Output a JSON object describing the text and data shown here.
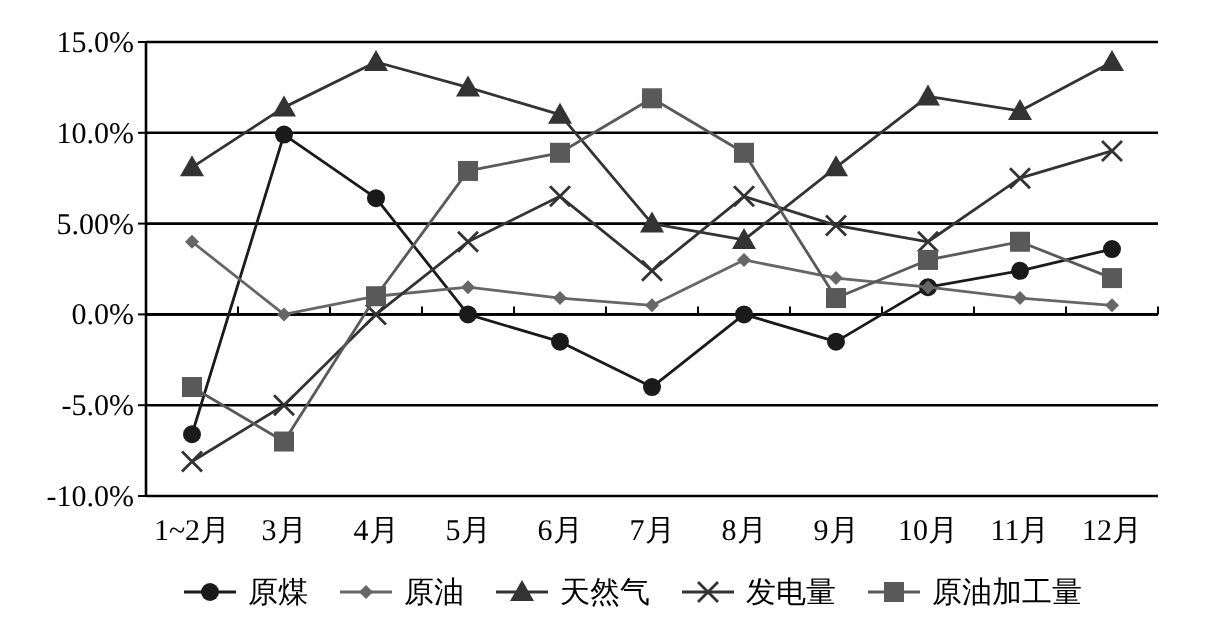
{
  "chart_data": {
    "type": "line",
    "categories": [
      "1~2月",
      "3月",
      "4月",
      "5月",
      "6月",
      "7月",
      "8月",
      "9月",
      "10月",
      "11月",
      "12月"
    ],
    "ylim": [
      -10,
      15
    ],
    "yticks": [
      {
        "value": 15,
        "label": "15.0%"
      },
      {
        "value": 10,
        "label": "10.0%"
      },
      {
        "value": 5,
        "label": "5.00%"
      },
      {
        "value": 0,
        "label": "0.0%"
      },
      {
        "value": -5,
        "label": "-5.0%"
      },
      {
        "value": -10,
        "label": "-10.0%"
      }
    ],
    "grid": "y",
    "legend": "bottom",
    "line_style": "solid",
    "series": [
      {
        "name": "原煤",
        "color": "#1a1a1a",
        "marker": "circle",
        "values": [
          -6.6,
          9.9,
          6.4,
          0,
          -1.5,
          -4.0,
          0,
          -1.5,
          1.5,
          2.4,
          3.6
        ]
      },
      {
        "name": "原油",
        "color": "#666666",
        "marker": "diamond",
        "values": [
          4.0,
          0,
          1.0,
          1.5,
          0.9,
          0.5,
          3.0,
          2.0,
          1.5,
          0.9,
          0.5
        ]
      },
      {
        "name": "天然气",
        "color": "#333333",
        "marker": "triangle",
        "values": [
          8.1,
          11.4,
          13.9,
          12.5,
          11.0,
          5.0,
          4.1,
          8.1,
          12.0,
          11.2,
          13.9
        ]
      },
      {
        "name": "发电量",
        "color": "#333333",
        "marker": "cross",
        "values": [
          -8.1,
          -5.0,
          0,
          4.0,
          6.5,
          2.4,
          6.5,
          4.9,
          4.0,
          7.5,
          9.0
        ]
      },
      {
        "name": "原油加工量",
        "color": "#595959",
        "marker": "square",
        "values": [
          -4.0,
          -7.0,
          1.0,
          7.9,
          8.9,
          11.9,
          8.9,
          0.9,
          3.0,
          4.0,
          2.0
        ]
      }
    ]
  }
}
